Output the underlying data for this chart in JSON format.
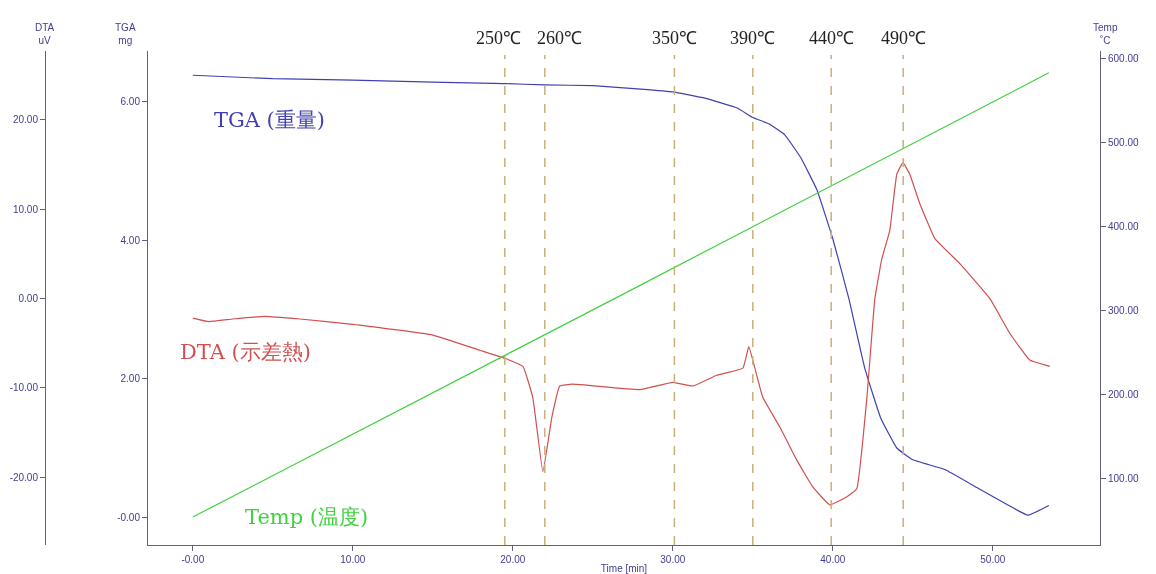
{
  "chart_data": {
    "type": "line",
    "xlabel": "Time [min]",
    "ylabel": "TGA\nmg",
    "y2label": "DTA\nuV",
    "y3label": "Temp\n˚C",
    "xlim": [
      -2.8,
      56.7
    ],
    "ylim": [
      -0.4,
      6.73
    ],
    "y2lim": [
      -27.6,
      27.7
    ],
    "y3lim": [
      20.7,
      609
    ],
    "xticks": [
      {
        "value": 0,
        "label": "-0.00"
      },
      {
        "value": 10,
        "label": "10.00"
      },
      {
        "value": 20,
        "label": "20.00"
      },
      {
        "value": 30,
        "label": "30.00"
      },
      {
        "value": 40,
        "label": "40.00"
      },
      {
        "value": 50,
        "label": "50.00"
      }
    ],
    "yticks": [
      {
        "value": 0,
        "label": "-0.00"
      },
      {
        "value": 2,
        "label": "2.00"
      },
      {
        "value": 4,
        "label": "4.00"
      },
      {
        "value": 6,
        "label": "6.00"
      }
    ],
    "y2ticks": [
      {
        "value": -20,
        "label": "-20.00"
      },
      {
        "value": -10,
        "label": "-10.00"
      },
      {
        "value": 0,
        "label": "0.00"
      },
      {
        "value": 10,
        "label": "10.00"
      },
      {
        "value": 20,
        "label": "20.00"
      }
    ],
    "y3ticks": [
      {
        "value": 100,
        "label": "100.00"
      },
      {
        "value": 200,
        "label": "200.00"
      },
      {
        "value": 300,
        "label": "300.00"
      },
      {
        "value": 400,
        "label": "400.00"
      },
      {
        "value": 500,
        "label": "500.00"
      },
      {
        "value": 600,
        "label": "600.00"
      }
    ],
    "legend": false,
    "marker": "none",
    "line_style": "solid",
    "series": [
      {
        "name": "TGA (重量)",
        "color": "#4040b0",
        "x": [
          0,
          5,
          10,
          15,
          19.5,
          22,
          25,
          28,
          30,
          32,
          34,
          35,
          36,
          37,
          38,
          39,
          40,
          41,
          42,
          43,
          44,
          45,
          47,
          49,
          51,
          52.2,
          53.5
        ],
        "values": [
          6.38,
          6.33,
          6.31,
          6.28,
          6.26,
          6.24,
          6.23,
          6.18,
          6.14,
          6.05,
          5.91,
          5.77,
          5.68,
          5.52,
          5.19,
          4.73,
          4.02,
          3.16,
          2.15,
          1.43,
          1.0,
          0.83,
          0.69,
          0.43,
          0.17,
          0.03,
          0.17
        ]
      },
      {
        "name": "DTA (示差熱)",
        "color": "#d05050",
        "axis": "y2",
        "x": [
          0,
          1,
          2.5,
          4.5,
          6.7,
          10,
          15,
          17.94,
          19.5,
          20.63,
          21.25,
          21.88,
          22.44,
          22.94,
          23.75,
          27.94,
          30.0,
          31.25,
          32.75,
          34.38,
          34.75,
          35.13,
          35.63,
          36.69,
          37.75,
          38.75,
          39.81,
          40.88,
          41.5,
          42.13,
          42.63,
          43.06,
          43.56,
          44.0,
          44.38,
          44.81,
          45.44,
          46.38,
          47.94,
          49.81,
          51.06,
          52.31,
          53.56
        ],
        "values": [
          -2.2,
          -2.6,
          -2.3,
          -2.0,
          -2.3,
          -2.9,
          -4.1,
          -5.8,
          -6.7,
          -7.6,
          -11.1,
          -19.4,
          -13.3,
          -9.8,
          -9.6,
          -10.2,
          -9.4,
          -9.8,
          -8.6,
          -7.8,
          -5.4,
          -7.8,
          -11.1,
          -14.4,
          -18.1,
          -21.1,
          -23.1,
          -22.2,
          -21.3,
          -11.1,
          0,
          4.4,
          7.6,
          13.9,
          15.2,
          13.9,
          10.6,
          6.7,
          3.9,
          0,
          -3.9,
          -6.9,
          -7.6
        ]
      },
      {
        "name": "Temp (温度)",
        "color": "#40d040",
        "axis": "y3",
        "x": [
          0,
          26.75,
          53.5
        ],
        "values": [
          54,
          318,
          583
        ]
      }
    ],
    "ref_lines": [
      {
        "axis": "x",
        "value": 19.5,
        "label": "250℃",
        "color": "#c8b07a",
        "line_style": "dashed"
      },
      {
        "axis": "x",
        "value": 22.0,
        "label": "260℃",
        "color": "#c8b07a",
        "line_style": "dashed"
      },
      {
        "axis": "x",
        "value": 30.1,
        "label": "350℃",
        "color": "#c8b07a",
        "line_style": "dashed"
      },
      {
        "axis": "x",
        "value": 35.0,
        "label": "390℃",
        "color": "#c8b07a",
        "line_style": "dashed"
      },
      {
        "axis": "x",
        "value": 39.9,
        "label": "440℃",
        "color": "#c8b07a",
        "line_style": "dashed"
      },
      {
        "axis": "x",
        "value": 44.4,
        "label": "490℃",
        "color": "#c8b07a",
        "line_style": "dashed"
      }
    ]
  }
}
